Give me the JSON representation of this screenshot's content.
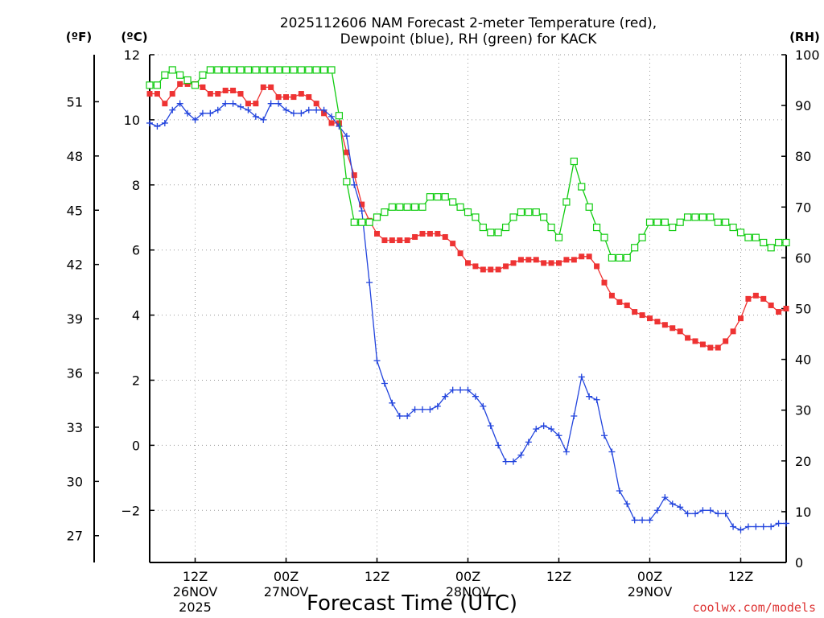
{
  "chart_data": {
    "type": "line",
    "title": "2025112606 NAM Forecast 2-meter Temperature (red),",
    "subtitle": "Dewpoint (blue), RH (green) for KACK",
    "xlabel": "Forecast Time (UTC)",
    "credit": "coolwx.com/models",
    "unit_f": "(ºF)",
    "unit_c": "(ºC)",
    "unit_rh": "(RH)",
    "x_unit": "forecast hour from 2025-11-26 06Z",
    "xlim": [
      0,
      84
    ],
    "ylim_c": [
      -3.6,
      12
    ],
    "ylim_rh": [
      0,
      100
    ],
    "grid": true,
    "c_ticks": [
      "12",
      "10",
      "8",
      "6",
      "4",
      "2",
      "0",
      "−2"
    ],
    "c_tick_values": [
      12,
      10,
      8,
      6,
      4,
      2,
      0,
      -2
    ],
    "f_ticks": [
      "51",
      "48",
      "45",
      "42",
      "39",
      "36",
      "33",
      "30",
      "27"
    ],
    "f_tick_values": [
      51,
      48,
      45,
      42,
      39,
      36,
      33,
      30,
      27
    ],
    "rh_ticks": [
      "100",
      "90",
      "80",
      "70",
      "60",
      "50",
      "40",
      "30",
      "20",
      "10",
      "0"
    ],
    "rh_tick_values": [
      100,
      90,
      80,
      70,
      60,
      50,
      40,
      30,
      20,
      10,
      0
    ],
    "x_ticks": [
      {
        "hour": 6,
        "label": "12Z"
      },
      {
        "hour": 18,
        "label": "00Z"
      },
      {
        "hour": 30,
        "label": "12Z"
      },
      {
        "hour": 42,
        "label": "00Z"
      },
      {
        "hour": 54,
        "label": "12Z"
      },
      {
        "hour": 66,
        "label": "00Z"
      },
      {
        "hour": 78,
        "label": "12Z"
      }
    ],
    "date_labels": [
      {
        "hour": 6,
        "lines": [
          "26NOV",
          "2025"
        ]
      },
      {
        "hour": 18,
        "lines": [
          "27NOV"
        ]
      },
      {
        "hour": 42,
        "lines": [
          "28NOV"
        ]
      },
      {
        "hour": 66,
        "lines": [
          "29NOV"
        ]
      }
    ],
    "x": [
      0,
      1,
      2,
      3,
      4,
      5,
      6,
      7,
      8,
      9,
      10,
      11,
      12,
      13,
      14,
      15,
      16,
      17,
      18,
      19,
      20,
      21,
      22,
      23,
      24,
      25,
      26,
      27,
      28,
      29,
      30,
      31,
      32,
      33,
      34,
      35,
      36,
      37,
      38,
      39,
      40,
      41,
      42,
      43,
      44,
      45,
      46,
      47,
      48,
      49,
      50,
      51,
      52,
      53,
      54,
      55,
      56,
      57,
      58,
      59,
      60,
      61,
      62,
      63,
      64,
      65,
      66,
      67,
      68,
      69,
      70,
      71,
      72,
      73,
      74,
      75,
      76,
      77,
      78,
      79,
      80,
      81,
      82,
      83,
      84
    ],
    "series": [
      {
        "name": "Temperature (red)",
        "color": "#ee3333",
        "marker": "filled-square",
        "axis": "c",
        "values": [
          10.8,
          10.8,
          10.5,
          10.8,
          11.1,
          11.1,
          11.1,
          11.0,
          10.8,
          10.8,
          10.9,
          10.9,
          10.8,
          10.5,
          10.5,
          11.0,
          11.0,
          10.7,
          10.7,
          10.7,
          10.8,
          10.7,
          10.5,
          10.2,
          9.9,
          9.9,
          9.0,
          8.3,
          7.4,
          6.9,
          6.5,
          6.3,
          6.3,
          6.3,
          6.3,
          6.4,
          6.5,
          6.5,
          6.5,
          6.4,
          6.2,
          5.9,
          5.6,
          5.5,
          5.4,
          5.4,
          5.4,
          5.5,
          5.6,
          5.7,
          5.7,
          5.7,
          5.6,
          5.6,
          5.6,
          5.7,
          5.7,
          5.8,
          5.8,
          5.5,
          5.0,
          4.6,
          4.4,
          4.3,
          4.1,
          4.0,
          3.9,
          3.8,
          3.7,
          3.6,
          3.5,
          3.3,
          3.2,
          3.1,
          3.0,
          3.0,
          3.2,
          3.5,
          3.9,
          4.5,
          4.6,
          4.5,
          4.3,
          4.1,
          4.2
        ]
      },
      {
        "name": "Dewpoint (blue)",
        "color": "#2244dd",
        "marker": "plus",
        "axis": "c",
        "values": [
          9.9,
          9.8,
          9.9,
          10.3,
          10.5,
          10.2,
          10.0,
          10.2,
          10.2,
          10.3,
          10.5,
          10.5,
          10.4,
          10.3,
          10.1,
          10.0,
          10.5,
          10.5,
          10.3,
          10.2,
          10.2,
          10.3,
          10.3,
          10.3,
          10.1,
          9.8,
          9.5,
          8.0,
          7.2,
          5.0,
          2.6,
          1.9,
          1.3,
          0.9,
          0.9,
          1.1,
          1.1,
          1.1,
          1.2,
          1.5,
          1.7,
          1.7,
          1.7,
          1.5,
          1.2,
          0.6,
          0.0,
          -0.5,
          -0.5,
          -0.3,
          0.1,
          0.5,
          0.6,
          0.5,
          0.3,
          -0.2,
          0.9,
          2.1,
          1.5,
          1.4,
          0.3,
          -0.2,
          -1.4,
          -1.8,
          -2.3,
          -2.3,
          -2.3,
          -2.0,
          -1.6,
          -1.8,
          -1.9,
          -2.1,
          -2.1,
          -2.0,
          -2.0,
          -2.1,
          -2.1,
          -2.5,
          -2.6,
          -2.5,
          -2.5,
          -2.5,
          -2.5,
          -2.4,
          -2.4
        ]
      },
      {
        "name": "RH (green)",
        "color": "#11cc11",
        "marker": "open-square",
        "axis": "rh",
        "values": [
          94,
          94,
          96,
          97,
          96,
          95,
          94,
          96,
          97,
          97,
          97,
          97,
          97,
          97,
          97,
          97,
          97,
          97,
          97,
          97,
          97,
          97,
          97,
          97,
          97,
          88,
          75,
          67,
          67,
          67,
          68,
          69,
          70,
          70,
          70,
          70,
          70,
          72,
          72,
          72,
          71,
          70,
          69,
          68,
          66,
          65,
          65,
          66,
          68,
          69,
          69,
          69,
          68,
          66,
          64,
          71,
          79,
          74,
          70,
          66,
          64,
          60,
          60,
          60,
          62,
          64,
          67,
          67,
          67,
          66,
          67,
          68,
          68,
          68,
          68,
          67,
          67,
          66,
          65,
          64,
          64,
          63,
          62,
          63,
          63
        ]
      }
    ]
  }
}
